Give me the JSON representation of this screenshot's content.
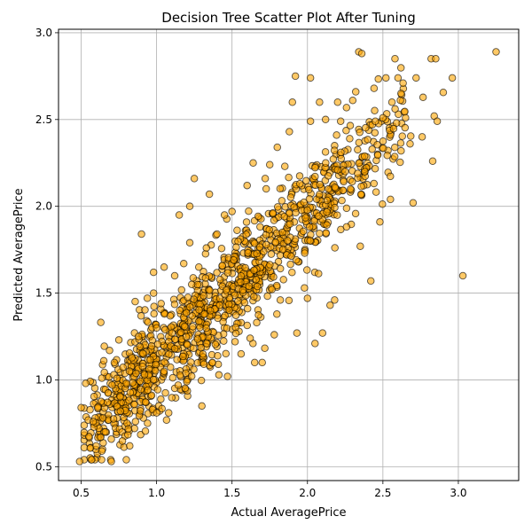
{
  "chart_data": {
    "type": "scatter",
    "title": "Decision Tree Scatter Plot After Tuning",
    "xlabel": "Actual AveragePrice",
    "ylabel": "Predicted AveragePrice",
    "xlim": [
      0.35,
      3.4
    ],
    "ylim": [
      0.42,
      3.02
    ],
    "xticks": [
      0.5,
      1.0,
      1.5,
      2.0,
      2.5,
      3.0
    ],
    "xtick_labels": [
      "0.5",
      "1.0",
      "1.5",
      "2.0",
      "2.5",
      "3.0"
    ],
    "yticks": [
      0.5,
      1.0,
      1.5,
      2.0,
      2.5,
      3.0
    ],
    "ytick_labels": [
      "0.5",
      "1.0",
      "1.5",
      "2.0",
      "2.5",
      "3.0"
    ],
    "grid": true,
    "marker_color": "#ffa500",
    "marker_edge_color": "#000000",
    "marker_alpha": 0.6,
    "point_count": 1200,
    "points": [
      [
        0.49,
        0.53
      ],
      [
        0.5,
        0.84
      ],
      [
        0.53,
        0.98
      ],
      [
        0.56,
        0.55
      ],
      [
        0.57,
        0.54
      ],
      [
        0.58,
        0.76
      ],
      [
        0.6,
        0.62
      ],
      [
        0.61,
        0.84
      ],
      [
        0.63,
        0.67
      ],
      [
        0.65,
        1.11
      ],
      [
        0.66,
        0.7
      ],
      [
        0.7,
        0.53
      ],
      [
        0.72,
        1.1
      ],
      [
        0.75,
        1.23
      ],
      [
        0.76,
        0.82
      ],
      [
        0.8,
        0.98
      ],
      [
        0.82,
        1.05
      ],
      [
        0.86,
        0.76
      ],
      [
        0.88,
        1.25
      ],
      [
        0.9,
        1.84
      ],
      [
        0.92,
        1.03
      ],
      [
        0.94,
        0.75
      ],
      [
        0.98,
        1.5
      ],
      [
        0.98,
        1.62
      ],
      [
        1.0,
        0.81
      ],
      [
        1.03,
        1.44
      ],
      [
        1.05,
        1.65
      ],
      [
        1.08,
        0.81
      ],
      [
        1.12,
        1.6
      ],
      [
        1.15,
        1.95
      ],
      [
        1.18,
        1.67
      ],
      [
        1.2,
        0.99
      ],
      [
        1.22,
        2.0
      ],
      [
        1.22,
        1.79
      ],
      [
        1.25,
        2.16
      ],
      [
        1.28,
        1.65
      ],
      [
        1.3,
        0.85
      ],
      [
        1.33,
        1.76
      ],
      [
        1.35,
        2.07
      ],
      [
        1.37,
        1.1
      ],
      [
        1.4,
        1.84
      ],
      [
        1.45,
        1.95
      ],
      [
        1.47,
        1.02
      ],
      [
        1.5,
        1.97
      ],
      [
        1.52,
        1.22
      ],
      [
        1.56,
        1.15
      ],
      [
        1.6,
        2.12
      ],
      [
        1.62,
        1.24
      ],
      [
        1.64,
        2.25
      ],
      [
        1.65,
        1.1
      ],
      [
        1.7,
        1.1
      ],
      [
        1.72,
        2.16
      ],
      [
        1.75,
        2.24
      ],
      [
        1.78,
        1.26
      ],
      [
        1.8,
        2.34
      ],
      [
        1.82,
        1.46
      ],
      [
        1.85,
        2.23
      ],
      [
        1.88,
        2.43
      ],
      [
        1.9,
        2.6
      ],
      [
        1.92,
        2.75
      ],
      [
        1.93,
        1.27
      ],
      [
        1.95,
        2.13
      ],
      [
        1.98,
        1.53
      ],
      [
        2.0,
        1.47
      ],
      [
        2.02,
        2.49
      ],
      [
        2.02,
        2.74
      ],
      [
        2.05,
        1.21
      ],
      [
        2.08,
        2.6
      ],
      [
        2.1,
        1.27
      ],
      [
        2.12,
        2.5
      ],
      [
        2.15,
        1.43
      ],
      [
        2.18,
        1.46
      ],
      [
        2.2,
        2.6
      ],
      [
        2.22,
        2.49
      ],
      [
        2.25,
        2.2
      ],
      [
        2.28,
        2.39
      ],
      [
        2.3,
        2.61
      ],
      [
        2.32,
        2.66
      ],
      [
        2.34,
        2.89
      ],
      [
        2.35,
        1.77
      ],
      [
        2.36,
        2.88
      ],
      [
        2.38,
        2.2
      ],
      [
        2.42,
        1.57
      ],
      [
        2.43,
        2.47
      ],
      [
        2.45,
        2.49
      ],
      [
        2.48,
        1.91
      ],
      [
        2.5,
        2.51
      ],
      [
        2.52,
        2.74
      ],
      [
        2.55,
        2.04
      ],
      [
        2.56,
        2.6
      ],
      [
        2.58,
        2.85
      ],
      [
        2.6,
        2.74
      ],
      [
        2.62,
        2.65
      ],
      [
        2.65,
        2.51
      ],
      [
        2.68,
        2.36
      ],
      [
        2.7,
        2.02
      ],
      [
        2.72,
        2.74
      ],
      [
        2.76,
        2.4
      ],
      [
        2.82,
        2.85
      ],
      [
        2.83,
        2.26
      ],
      [
        2.84,
        2.52
      ],
      [
        2.85,
        2.85
      ],
      [
        2.86,
        2.49
      ],
      [
        2.96,
        2.74
      ],
      [
        3.03,
        1.6
      ],
      [
        3.25,
        2.89
      ]
    ]
  }
}
